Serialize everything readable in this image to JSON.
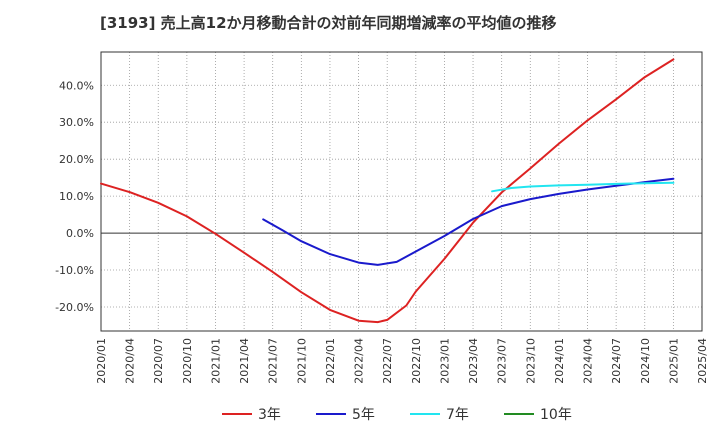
{
  "chart_data": {
    "type": "line",
    "title": "[3193]  売上高12か月移動合計の対前年同期増減率の平均値の推移",
    "xlabel": "",
    "ylabel": "",
    "x_ticks": [
      "2020/01",
      "2020/04",
      "2020/07",
      "2020/10",
      "2021/01",
      "2021/04",
      "2021/07",
      "2021/10",
      "2022/01",
      "2022/04",
      "2022/07",
      "2022/10",
      "2023/01",
      "2023/04",
      "2023/07",
      "2023/10",
      "2024/01",
      "2024/04",
      "2024/07",
      "2024/10",
      "2025/01",
      "2025/04"
    ],
    "y_ticks": [
      -20,
      -10,
      0,
      10,
      20,
      30,
      40
    ],
    "y_tick_labels": [
      "-20.0%",
      "-10.0%",
      "0.0%",
      "10.0%",
      "20.0%",
      "30.0%",
      "40.0%"
    ],
    "ylim": [
      -26.5,
      49
    ],
    "grid": true,
    "legend_position": "bottom",
    "series": [
      {
        "name": "3年",
        "color": "#dd2222",
        "points": [
          [
            "2020/01",
            13.4
          ],
          [
            "2020/04",
            11.1
          ],
          [
            "2020/07",
            8.2
          ],
          [
            "2020/10",
            4.5
          ],
          [
            "2021/01",
            -0.2
          ],
          [
            "2021/04",
            -5.3
          ],
          [
            "2021/07",
            -10.5
          ],
          [
            "2021/10",
            -16.0
          ],
          [
            "2022/01",
            -20.8
          ],
          [
            "2022/04",
            -23.7
          ],
          [
            "2022/06",
            -24.1
          ],
          [
            "2022/07",
            -23.5
          ],
          [
            "2022/09",
            -19.6
          ],
          [
            "2022/10",
            -15.8
          ],
          [
            "2023/01",
            -7.0
          ],
          [
            "2023/04",
            2.8
          ],
          [
            "2023/07",
            11.0
          ],
          [
            "2023/10",
            17.5
          ],
          [
            "2024/01",
            24.2
          ],
          [
            "2024/04",
            30.5
          ],
          [
            "2024/07",
            36.2
          ],
          [
            "2024/10",
            42.2
          ],
          [
            "2025/01",
            47.0
          ]
        ]
      },
      {
        "name": "5年",
        "color": "#1a1acc",
        "points": [
          [
            "2021/06",
            3.7
          ],
          [
            "2021/08",
            0.8
          ],
          [
            "2021/10",
            -2.2
          ],
          [
            "2022/01",
            -5.7
          ],
          [
            "2022/04",
            -8.0
          ],
          [
            "2022/06",
            -8.6
          ],
          [
            "2022/08",
            -7.8
          ],
          [
            "2022/10",
            -5.0
          ],
          [
            "2023/01",
            -0.8
          ],
          [
            "2023/04",
            3.8
          ],
          [
            "2023/07",
            7.3
          ],
          [
            "2023/10",
            9.2
          ],
          [
            "2024/01",
            10.6
          ],
          [
            "2024/04",
            11.8
          ],
          [
            "2024/07",
            12.8
          ],
          [
            "2024/10",
            13.8
          ],
          [
            "2025/01",
            14.7
          ]
        ]
      },
      {
        "name": "7年",
        "color": "#22e5f0",
        "points": [
          [
            "2023/06",
            11.3
          ],
          [
            "2023/08",
            12.2
          ],
          [
            "2023/10",
            12.6
          ],
          [
            "2024/01",
            12.9
          ],
          [
            "2024/04",
            13.1
          ],
          [
            "2024/07",
            13.3
          ],
          [
            "2024/10",
            13.5
          ],
          [
            "2025/01",
            13.6
          ]
        ]
      },
      {
        "name": "10年",
        "color": "#228b22",
        "points": []
      }
    ]
  }
}
